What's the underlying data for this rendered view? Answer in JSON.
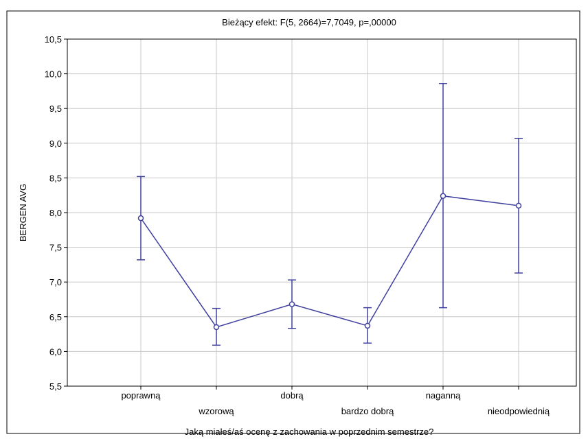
{
  "chart_data": {
    "type": "line",
    "title": "Bieżący efekt: F(5, 2664)=7,7049, p=,00000",
    "xlabel": "Jaką miałeś/aś ocenę z zachowania w poprzednim semestrze?",
    "ylabel": "BERGEN AVG",
    "categories": [
      "poprawną",
      "wzorową",
      "dobrą",
      "bardzo dobrą",
      "naganną",
      "nieodpowiednią"
    ],
    "series": [
      {
        "values": [
          7.92,
          6.35,
          6.68,
          6.37,
          8.24,
          8.1
        ],
        "lower": [
          7.32,
          6.09,
          6.33,
          6.12,
          6.63,
          7.13
        ],
        "upper": [
          8.52,
          6.62,
          7.03,
          6.63,
          9.86,
          9.07
        ],
        "color": "#4040a0"
      }
    ],
    "ylim": [
      5.5,
      10.5
    ],
    "yticks": [
      "5,5",
      "6,0",
      "6,5",
      "7,0",
      "7,5",
      "8,0",
      "8,5",
      "9,0",
      "9,5",
      "10,0",
      "10,5"
    ],
    "grid": true,
    "colors": {
      "line": "#4040a0",
      "grid": "#c8c8c8",
      "frame": "#000000"
    }
  }
}
